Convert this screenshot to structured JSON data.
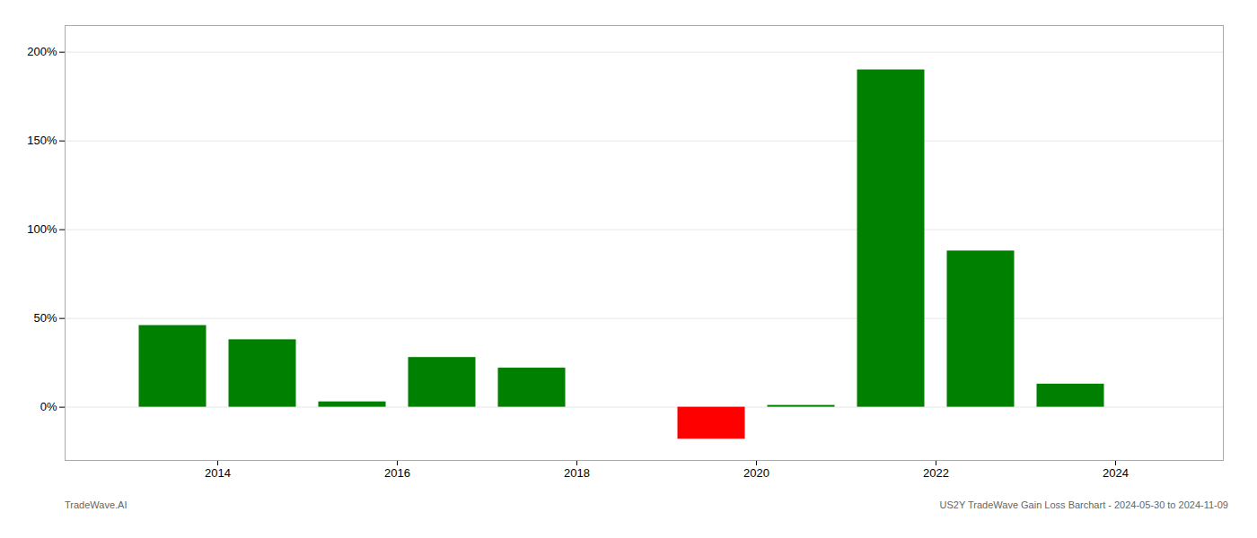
{
  "chart_data": {
    "type": "bar",
    "x": [
      2013.5,
      2014.5,
      2015.5,
      2016.5,
      2017.5,
      2018.5,
      2019.5,
      2020.5,
      2021.5,
      2022.5,
      2023.5
    ],
    "values": [
      46,
      38,
      3,
      28,
      22,
      0,
      -18,
      1,
      190,
      88,
      13
    ],
    "colors": [
      "#008000",
      "#008000",
      "#008000",
      "#008000",
      "#008000",
      "#008000",
      "#ff0000",
      "#008000",
      "#008000",
      "#008000",
      "#008000"
    ],
    "xlim": [
      2012.3,
      2025.2
    ],
    "xticks": [
      2014,
      2016,
      2018,
      2020,
      2022,
      2024
    ],
    "ylim": [
      -30,
      215
    ],
    "yticks": [
      {
        "value": 0,
        "label": "0%"
      },
      {
        "value": 50,
        "label": "50%"
      },
      {
        "value": 100,
        "label": "100%"
      },
      {
        "value": 150,
        "label": "150%"
      },
      {
        "value": 200,
        "label": "200%"
      }
    ],
    "grid": true,
    "annotations": [
      "TradeWave.AI",
      "US2Y TradeWave Gain Loss Barchart - 2024-05-30 to 2024-11-09"
    ]
  }
}
